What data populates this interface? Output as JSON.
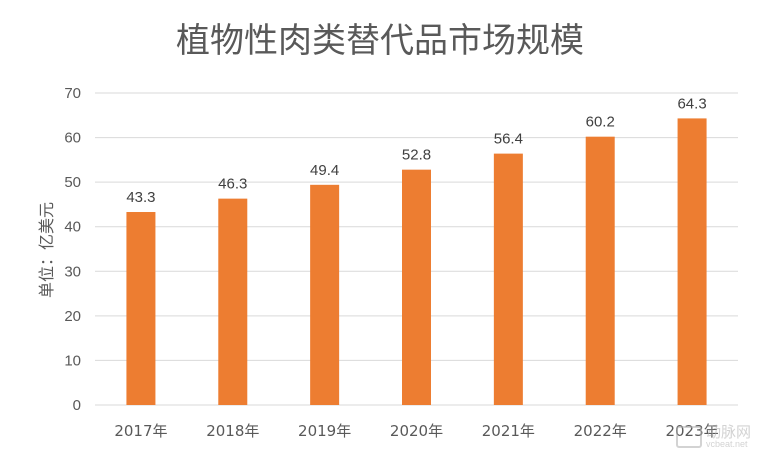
{
  "chart_data": {
    "type": "bar",
    "title": "植物性肉类替代品市场规模",
    "ylabel": "单位：亿美元",
    "xlabel": "",
    "categories": [
      "2017年",
      "2018年",
      "2019年",
      "2020年",
      "2021年",
      "2022年",
      "2023年"
    ],
    "values": [
      43.3,
      46.3,
      49.4,
      52.8,
      56.4,
      60.2,
      64.3
    ],
    "data_labels": [
      "43.3",
      "46.3",
      "49.4",
      "52.8",
      "56.4",
      "60.2",
      "64.3"
    ],
    "ylim": [
      0,
      70
    ],
    "yticks": [
      "0",
      "10",
      "20",
      "30",
      "40",
      "50",
      "60",
      "70"
    ],
    "grid": true,
    "bar_color": "#ED7D31",
    "grid_color": "#D9D9D9"
  },
  "watermark": {
    "cn": "动脉网",
    "en": "vcbeat.net"
  }
}
